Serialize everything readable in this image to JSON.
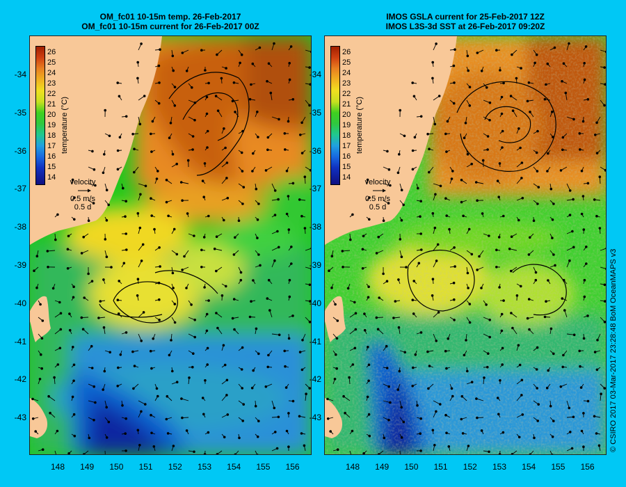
{
  "left_panel": {
    "title_line1": "OM_fc01 10-15m temp. 26-Feb-2017",
    "title_line2": "OM_fc01 10-15m current for 26-Feb-2017 00Z"
  },
  "right_panel": {
    "title_line1": "IMOS GSLA current for 25-Feb-2017 12Z",
    "title_line2": "IMOS L3S-3d SST at 26-Feb-2017 09:20Z"
  },
  "y_ticks": [
    "-34",
    "-35",
    "-36",
    "-37",
    "-38",
    "-39",
    "-40",
    "-41",
    "-42",
    "-43"
  ],
  "x_ticks": [
    "148",
    "149",
    "150",
    "151",
    "152",
    "153",
    "154",
    "155",
    "156"
  ],
  "colorbar": {
    "ticks": [
      "26",
      "25",
      "24",
      "23",
      "22",
      "21",
      "20",
      "19",
      "18",
      "17",
      "16",
      "15",
      "14"
    ],
    "unit": "temperature (°C)"
  },
  "velocity_legend": {
    "label": "velocity",
    "speed": "0.5 m/s",
    "duration": "0.5 d"
  },
  "credit": "© CSIRO 2017  03-Mar-2017 23:28:48 BoM OceanMAPS v3",
  "colors": {
    "background": "#00c8f5",
    "land": "#f8c898"
  }
}
